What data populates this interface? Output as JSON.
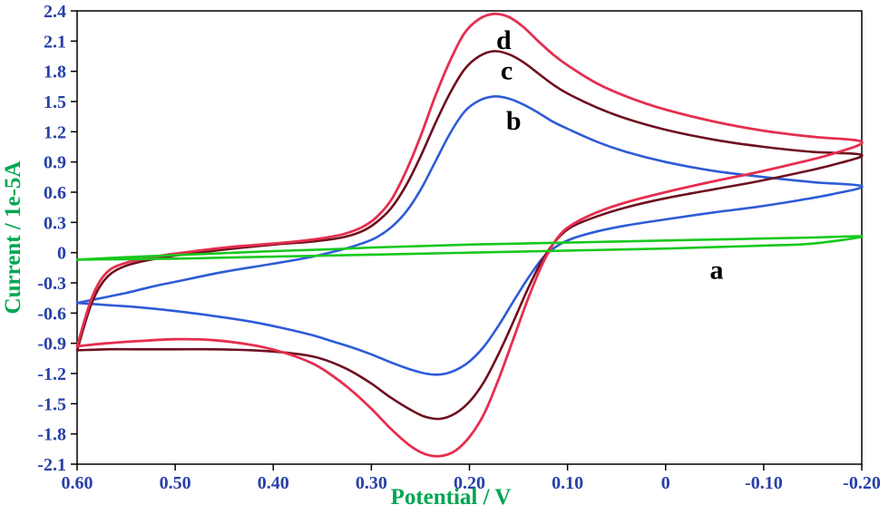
{
  "chart_data": {
    "type": "line",
    "title": "",
    "xlabel": "Potential / V",
    "ylabel": "Current / 1e-5A",
    "xlim": [
      0.6,
      -0.2
    ],
    "ylim": [
      -2.1,
      2.4
    ],
    "x_reversed": true,
    "grid": false,
    "legend_position": "none",
    "axis_title_color": "#00A651",
    "tick_label_color": "#2740A8",
    "frame_color": "#000000",
    "x_ticks": [
      {
        "v": 0.6,
        "label": "0.60"
      },
      {
        "v": 0.5,
        "label": "0.50"
      },
      {
        "v": 0.4,
        "label": "0.40"
      },
      {
        "v": 0.3,
        "label": "0.30"
      },
      {
        "v": 0.2,
        "label": "0.20"
      },
      {
        "v": 0.1,
        "label": "0.10"
      },
      {
        "v": 0.0,
        "label": "0"
      },
      {
        "v": -0.1,
        "label": "-0.10"
      },
      {
        "v": -0.2,
        "label": "-0.20"
      }
    ],
    "y_ticks": [
      {
        "v": 2.4,
        "label": "2.4"
      },
      {
        "v": 2.1,
        "label": "2.1"
      },
      {
        "v": 1.8,
        "label": "1.8"
      },
      {
        "v": 1.5,
        "label": "1.5"
      },
      {
        "v": 1.2,
        "label": "1.2"
      },
      {
        "v": 0.9,
        "label": "0.9"
      },
      {
        "v": 0.6,
        "label": "0.6"
      },
      {
        "v": 0.3,
        "label": "0.3"
      },
      {
        "v": 0.0,
        "label": "0"
      },
      {
        "v": -0.3,
        "label": "-0.3"
      },
      {
        "v": -0.6,
        "label": "-0.6"
      },
      {
        "v": -0.9,
        "label": "-0.9"
      },
      {
        "v": -1.2,
        "label": "-1.2"
      },
      {
        "v": -1.5,
        "label": "-1.5"
      },
      {
        "v": -1.8,
        "label": "-1.8"
      },
      {
        "v": -2.1,
        "label": "-2.1"
      }
    ],
    "annotations": [
      {
        "text": "d",
        "x": 0.165,
        "y": 2.02
      },
      {
        "text": "c",
        "x": 0.162,
        "y": 1.72
      },
      {
        "text": "b",
        "x": 0.155,
        "y": 1.22
      },
      {
        "text": "a",
        "x": -0.052,
        "y": -0.26
      }
    ],
    "series": [
      {
        "name": "b",
        "color": "#2E5BD7",
        "stroke_width": 2.6,
        "anodic_peak": {
          "x": 0.175,
          "y": 1.55
        },
        "cathodic_peak": {
          "x": 0.23,
          "y": -1.21
        },
        "points": [
          [
            0.6,
            -0.5
          ],
          [
            0.57,
            -0.44
          ],
          [
            0.55,
            -0.4
          ],
          [
            0.52,
            -0.33
          ],
          [
            0.5,
            -0.29
          ],
          [
            0.45,
            -0.19
          ],
          [
            0.4,
            -0.11
          ],
          [
            0.36,
            -0.04
          ],
          [
            0.33,
            0.03
          ],
          [
            0.31,
            0.09
          ],
          [
            0.295,
            0.15
          ],
          [
            0.28,
            0.25
          ],
          [
            0.265,
            0.4
          ],
          [
            0.25,
            0.62
          ],
          [
            0.235,
            0.9
          ],
          [
            0.22,
            1.18
          ],
          [
            0.205,
            1.4
          ],
          [
            0.19,
            1.51
          ],
          [
            0.175,
            1.55
          ],
          [
            0.16,
            1.53
          ],
          [
            0.145,
            1.47
          ],
          [
            0.13,
            1.39
          ],
          [
            0.115,
            1.3
          ],
          [
            0.1,
            1.23
          ],
          [
            0.07,
            1.1
          ],
          [
            0.04,
            1.0
          ],
          [
            0.0,
            0.9
          ],
          [
            -0.05,
            0.81
          ],
          [
            -0.1,
            0.75
          ],
          [
            -0.15,
            0.7
          ],
          [
            -0.2,
            0.66
          ],
          [
            -0.17,
            0.58
          ],
          [
            -0.13,
            0.51
          ],
          [
            -0.09,
            0.45
          ],
          [
            -0.05,
            0.4
          ],
          [
            0.0,
            0.33
          ],
          [
            0.04,
            0.27
          ],
          [
            0.07,
            0.21
          ],
          [
            0.095,
            0.14
          ],
          [
            0.11,
            0.07
          ],
          [
            0.125,
            -0.05
          ],
          [
            0.14,
            -0.25
          ],
          [
            0.155,
            -0.48
          ],
          [
            0.17,
            -0.72
          ],
          [
            0.185,
            -0.93
          ],
          [
            0.2,
            -1.08
          ],
          [
            0.215,
            -1.17
          ],
          [
            0.23,
            -1.21
          ],
          [
            0.245,
            -1.2
          ],
          [
            0.26,
            -1.16
          ],
          [
            0.28,
            -1.09
          ],
          [
            0.3,
            -1.01
          ],
          [
            0.32,
            -0.94
          ],
          [
            0.34,
            -0.88
          ],
          [
            0.36,
            -0.82
          ],
          [
            0.39,
            -0.75
          ],
          [
            0.42,
            -0.69
          ],
          [
            0.46,
            -0.63
          ],
          [
            0.5,
            -0.58
          ],
          [
            0.54,
            -0.54
          ],
          [
            0.57,
            -0.52
          ],
          [
            0.6,
            -0.5
          ]
        ]
      },
      {
        "name": "c",
        "color": "#6E1020",
        "stroke_width": 2.6,
        "anodic_peak": {
          "x": 0.175,
          "y": 2.0
        },
        "cathodic_peak": {
          "x": 0.23,
          "y": -1.65
        },
        "points": [
          [
            0.6,
            -0.97
          ],
          [
            0.585,
            -0.5
          ],
          [
            0.57,
            -0.25
          ],
          [
            0.55,
            -0.13
          ],
          [
            0.52,
            -0.06
          ],
          [
            0.5,
            -0.03
          ],
          [
            0.45,
            0.03
          ],
          [
            0.4,
            0.08
          ],
          [
            0.36,
            0.11
          ],
          [
            0.33,
            0.15
          ],
          [
            0.31,
            0.21
          ],
          [
            0.295,
            0.3
          ],
          [
            0.28,
            0.44
          ],
          [
            0.265,
            0.66
          ],
          [
            0.25,
            0.95
          ],
          [
            0.235,
            1.28
          ],
          [
            0.22,
            1.58
          ],
          [
            0.205,
            1.82
          ],
          [
            0.19,
            1.95
          ],
          [
            0.175,
            2.0
          ],
          [
            0.16,
            1.97
          ],
          [
            0.145,
            1.89
          ],
          [
            0.13,
            1.78
          ],
          [
            0.115,
            1.67
          ],
          [
            0.1,
            1.58
          ],
          [
            0.07,
            1.44
          ],
          [
            0.04,
            1.33
          ],
          [
            0.0,
            1.22
          ],
          [
            -0.05,
            1.12
          ],
          [
            -0.1,
            1.05
          ],
          [
            -0.15,
            1.0
          ],
          [
            -0.2,
            0.97
          ],
          [
            -0.17,
            0.87
          ],
          [
            -0.13,
            0.78
          ],
          [
            -0.09,
            0.7
          ],
          [
            -0.05,
            0.63
          ],
          [
            0.0,
            0.54
          ],
          [
            0.04,
            0.45
          ],
          [
            0.07,
            0.36
          ],
          [
            0.095,
            0.26
          ],
          [
            0.11,
            0.14
          ],
          [
            0.125,
            -0.06
          ],
          [
            0.14,
            -0.35
          ],
          [
            0.155,
            -0.68
          ],
          [
            0.17,
            -1.0
          ],
          [
            0.185,
            -1.28
          ],
          [
            0.2,
            -1.48
          ],
          [
            0.215,
            -1.6
          ],
          [
            0.23,
            -1.65
          ],
          [
            0.245,
            -1.63
          ],
          [
            0.26,
            -1.56
          ],
          [
            0.28,
            -1.44
          ],
          [
            0.3,
            -1.3
          ],
          [
            0.32,
            -1.18
          ],
          [
            0.34,
            -1.09
          ],
          [
            0.36,
            -1.03
          ],
          [
            0.39,
            -0.99
          ],
          [
            0.42,
            -0.97
          ],
          [
            0.46,
            -0.96
          ],
          [
            0.5,
            -0.96
          ],
          [
            0.54,
            -0.96
          ],
          [
            0.57,
            -0.96
          ],
          [
            0.6,
            -0.97
          ]
        ]
      },
      {
        "name": "d",
        "color": "#E62E4F",
        "stroke_width": 2.8,
        "anodic_peak": {
          "x": 0.175,
          "y": 2.37
        },
        "cathodic_peak": {
          "x": 0.23,
          "y": -2.02
        },
        "points": [
          [
            0.6,
            -0.93
          ],
          [
            0.585,
            -0.45
          ],
          [
            0.57,
            -0.2
          ],
          [
            0.55,
            -0.1
          ],
          [
            0.52,
            -0.04
          ],
          [
            0.5,
            -0.01
          ],
          [
            0.45,
            0.05
          ],
          [
            0.4,
            0.09
          ],
          [
            0.36,
            0.13
          ],
          [
            0.33,
            0.18
          ],
          [
            0.31,
            0.25
          ],
          [
            0.295,
            0.35
          ],
          [
            0.28,
            0.52
          ],
          [
            0.265,
            0.8
          ],
          [
            0.25,
            1.15
          ],
          [
            0.235,
            1.55
          ],
          [
            0.22,
            1.9
          ],
          [
            0.205,
            2.18
          ],
          [
            0.19,
            2.32
          ],
          [
            0.175,
            2.37
          ],
          [
            0.16,
            2.34
          ],
          [
            0.145,
            2.24
          ],
          [
            0.13,
            2.1
          ],
          [
            0.115,
            1.97
          ],
          [
            0.1,
            1.86
          ],
          [
            0.07,
            1.68
          ],
          [
            0.04,
            1.55
          ],
          [
            0.0,
            1.42
          ],
          [
            -0.05,
            1.3
          ],
          [
            -0.1,
            1.21
          ],
          [
            -0.15,
            1.15
          ],
          [
            -0.2,
            1.1
          ],
          [
            -0.17,
            0.98
          ],
          [
            -0.13,
            0.88
          ],
          [
            -0.09,
            0.79
          ],
          [
            -0.05,
            0.71
          ],
          [
            0.0,
            0.6
          ],
          [
            0.04,
            0.5
          ],
          [
            0.07,
            0.4
          ],
          [
            0.095,
            0.28
          ],
          [
            0.11,
            0.15
          ],
          [
            0.125,
            -0.1
          ],
          [
            0.14,
            -0.45
          ],
          [
            0.155,
            -0.85
          ],
          [
            0.17,
            -1.25
          ],
          [
            0.185,
            -1.6
          ],
          [
            0.2,
            -1.83
          ],
          [
            0.215,
            -1.97
          ],
          [
            0.23,
            -2.02
          ],
          [
            0.245,
            -2.0
          ],
          [
            0.26,
            -1.92
          ],
          [
            0.28,
            -1.75
          ],
          [
            0.3,
            -1.55
          ],
          [
            0.32,
            -1.37
          ],
          [
            0.34,
            -1.22
          ],
          [
            0.36,
            -1.1
          ],
          [
            0.39,
            -0.99
          ],
          [
            0.42,
            -0.92
          ],
          [
            0.46,
            -0.87
          ],
          [
            0.5,
            -0.86
          ],
          [
            0.54,
            -0.88
          ],
          [
            0.57,
            -0.9
          ],
          [
            0.6,
            -0.93
          ]
        ]
      },
      {
        "name": "a",
        "color": "#17C81E",
        "stroke_width": 2.6,
        "anodic_peak": null,
        "cathodic_peak": null,
        "points": [
          [
            0.6,
            -0.07
          ],
          [
            0.55,
            -0.045
          ],
          [
            0.5,
            -0.025
          ],
          [
            0.45,
            -0.005
          ],
          [
            0.4,
            0.015
          ],
          [
            0.35,
            0.03
          ],
          [
            0.3,
            0.05
          ],
          [
            0.25,
            0.065
          ],
          [
            0.2,
            0.08
          ],
          [
            0.15,
            0.09
          ],
          [
            0.1,
            0.1
          ],
          [
            0.05,
            0.11
          ],
          [
            0.0,
            0.12
          ],
          [
            -0.05,
            0.13
          ],
          [
            -0.1,
            0.14
          ],
          [
            -0.15,
            0.15
          ],
          [
            -0.2,
            0.16
          ],
          [
            -0.15,
            0.09
          ],
          [
            -0.1,
            0.07
          ],
          [
            -0.05,
            0.055
          ],
          [
            0.0,
            0.04
          ],
          [
            0.05,
            0.03
          ],
          [
            0.1,
            0.02
          ],
          [
            0.15,
            0.01
          ],
          [
            0.2,
            0.0
          ],
          [
            0.25,
            -0.01
          ],
          [
            0.3,
            -0.02
          ],
          [
            0.35,
            -0.03
          ],
          [
            0.4,
            -0.04
          ],
          [
            0.45,
            -0.05
          ],
          [
            0.5,
            -0.06
          ],
          [
            0.55,
            -0.065
          ],
          [
            0.6,
            -0.07
          ]
        ]
      }
    ]
  }
}
